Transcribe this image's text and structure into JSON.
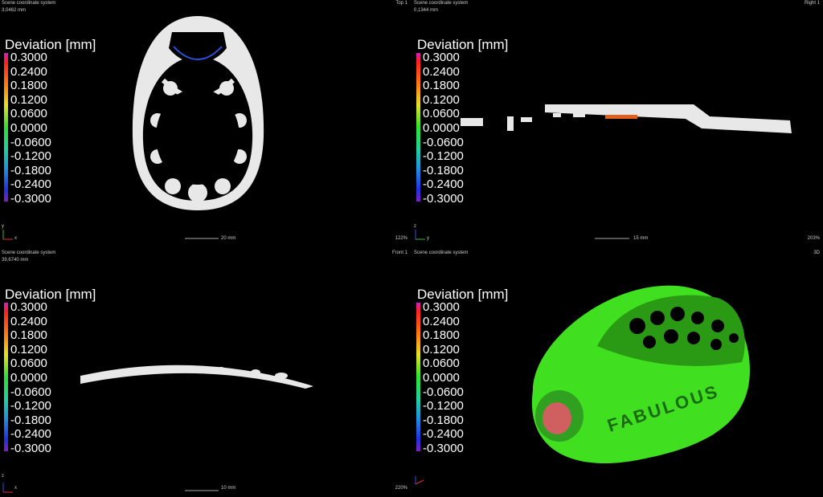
{
  "viewports": [
    {
      "header": {
        "system": "Scene coordinate system",
        "distance": "3,0462 mm",
        "view": "Top 1"
      },
      "legend": {
        "title": "Deviation [mm]",
        "labels": [
          "0.3000",
          "0.2400",
          "0.1800",
          "0.1200",
          "0.0600",
          "0.0000",
          "-0.0600",
          "-0.1200",
          "-0.1800",
          "-0.2400",
          "-0.3000"
        ]
      },
      "axes": [
        "y",
        "x"
      ],
      "scale": "20 mm",
      "zoom": "122%"
    },
    {
      "header": {
        "system": "Scene coordinate system",
        "distance": "0,1344 mm",
        "view": "Right 1"
      },
      "legend": {
        "title": "Deviation [mm]",
        "labels": [
          "0.3000",
          "0.2400",
          "0.1800",
          "0.1200",
          "0.0600",
          "0.0000",
          "-0.0600",
          "-0.1200",
          "-0.1800",
          "-0.2400",
          "-0.3000"
        ]
      },
      "axes": [
        "z",
        "y"
      ],
      "scale": "15 mm",
      "zoom": "203%"
    },
    {
      "header": {
        "system": "Scene coordinate system",
        "distance": "39,6740 mm",
        "view": "Front 1"
      },
      "legend": {
        "title": "Deviation [mm]",
        "labels": [
          "0.3000",
          "0.2400",
          "0.1800",
          "0.1200",
          "0.0600",
          "0.0000",
          "-0.0600",
          "-0.1200",
          "-0.1800",
          "-0.2400",
          "-0.3000"
        ]
      },
      "axes": [
        "z",
        "x"
      ],
      "scale": "10 mm",
      "zoom": "220%"
    },
    {
      "header": {
        "system": "Scene coordinate system",
        "view": "3D"
      },
      "legend": {
        "title": "Deviation [mm]",
        "labels": [
          "0.3000",
          "0.2400",
          "0.1800",
          "0.1200",
          "0.0600",
          "0.0000",
          "-0.0600",
          "-0.1200",
          "-0.1800",
          "-0.2400",
          "-0.3000"
        ]
      },
      "model_text": "FABULOUS"
    }
  ]
}
